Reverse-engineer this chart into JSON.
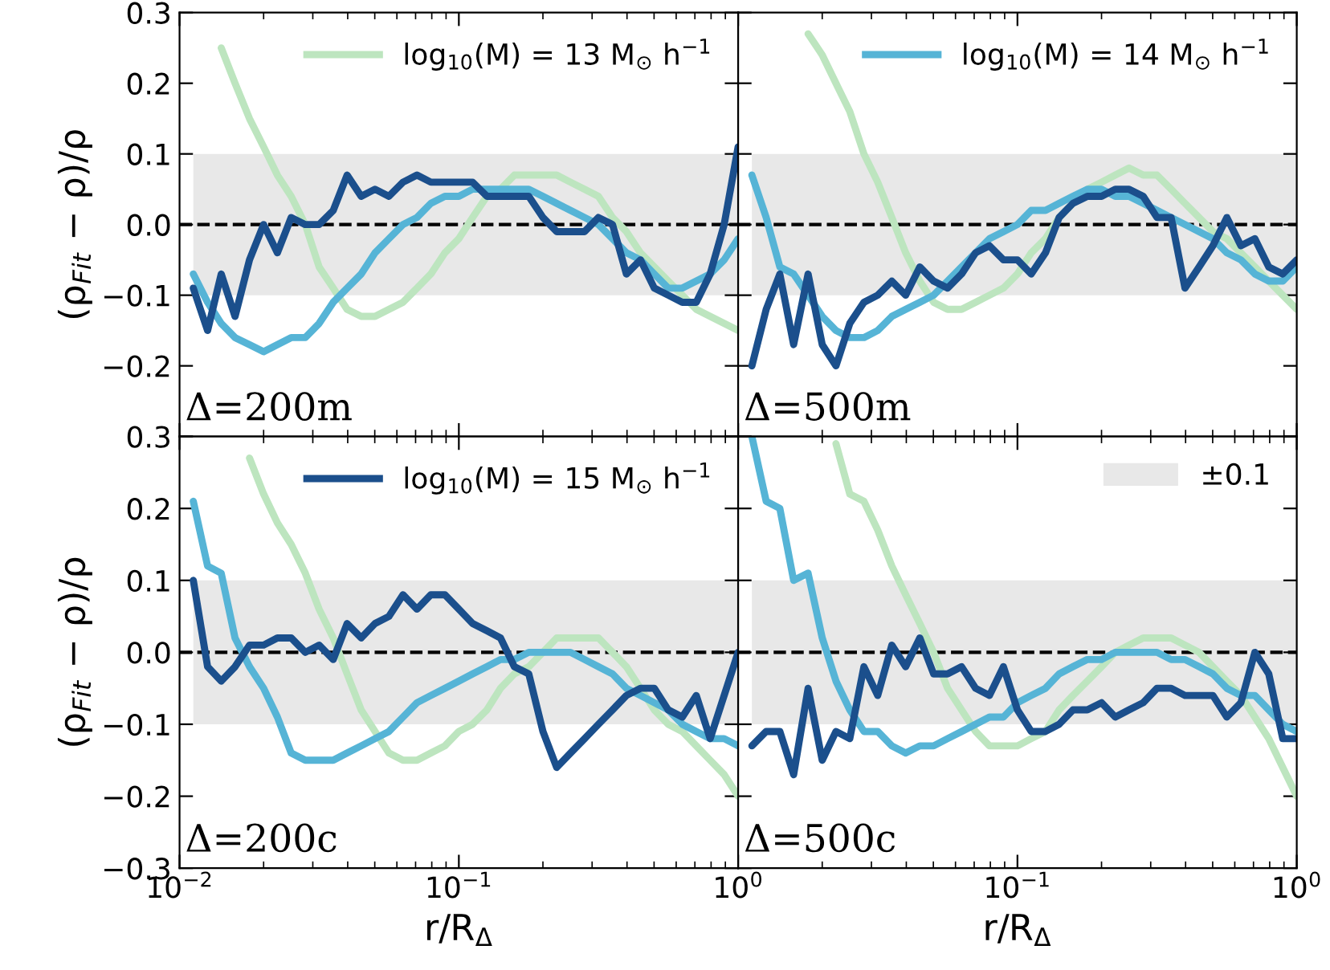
{
  "chart_data": [
    {
      "type": "line",
      "ylabel": "(ρ$_{Fit}$ − ρ)/ρ",
      "annotations": [
        "Δ=200m"
      ],
      "tick_labels": "y",
      "legend": "top right",
      "grid": false,
      "x": [
        0.0112,
        0.0126,
        0.0141,
        0.0158,
        0.0178,
        0.02,
        0.0224,
        0.0251,
        0.0282,
        0.0316,
        0.0355,
        0.0398,
        0.0447,
        0.0501,
        0.0562,
        0.0631,
        0.0708,
        0.0794,
        0.0891,
        0.1,
        0.112,
        0.126,
        0.141,
        0.158,
        0.178,
        0.2,
        0.224,
        0.251,
        0.282,
        0.316,
        0.355,
        0.398,
        0.447,
        0.501,
        0.562,
        0.631,
        0.708,
        0.794,
        0.891,
        1.0
      ],
      "log": "x",
      "xlim": [
        0.01,
        1
      ],
      "xticks": [
        {
          "value": 0.01,
          "label": null
        },
        {
          "value": 0.1,
          "label": null
        },
        {
          "value": 1,
          "label": null
        }
      ],
      "ylim": [
        -0.3,
        0.3
      ],
      "yticks": [
        {
          "value": -0.3,
          "label": null
        },
        {
          "value": -0.2,
          "label": "−0.2"
        },
        {
          "value": -0.1,
          "label": "−0.1"
        },
        {
          "value": 0,
          "label": "0.0"
        },
        0.1,
        0.2,
        0.3
      ],
      "ref_lines": [
        {
          "axis": "y",
          "value": 0,
          "color": "#000000",
          "line_style": "dashed"
        }
      ],
      "bands": [
        {
          "axis": "y",
          "from": -0.1,
          "to": 0.1,
          "color": "#e8e8e8"
        }
      ],
      "series": [
        {
          "name": "log$_{10}$(M) = 13 M$_{⊙}$ h$^{−1}$",
          "color": "#bde5bf",
          "values": [
            null,
            null,
            0.25,
            0.2,
            0.15,
            0.11,
            0.07,
            0.04,
            0.0,
            -0.06,
            -0.09,
            -0.12,
            -0.13,
            -0.13,
            -0.12,
            -0.11,
            -0.09,
            -0.07,
            -0.04,
            -0.02,
            0.01,
            0.04,
            0.05,
            0.07,
            0.07,
            0.07,
            0.07,
            0.06,
            0.05,
            0.04,
            0.01,
            -0.01,
            -0.04,
            -0.06,
            -0.08,
            -0.1,
            -0.12,
            -0.13,
            -0.14,
            -0.15
          ]
        },
        {
          "color": "#56b4d6",
          "values": [
            -0.07,
            -0.11,
            -0.14,
            -0.16,
            -0.17,
            -0.18,
            -0.17,
            -0.16,
            -0.16,
            -0.14,
            -0.11,
            -0.09,
            -0.07,
            -0.04,
            -0.02,
            0.0,
            0.01,
            0.03,
            0.04,
            0.04,
            0.05,
            0.05,
            0.05,
            0.05,
            0.05,
            0.04,
            0.03,
            0.02,
            0.01,
            0.0,
            -0.02,
            -0.04,
            -0.05,
            -0.07,
            -0.09,
            -0.09,
            -0.08,
            -0.07,
            -0.05,
            -0.02
          ]
        },
        {
          "color": "#1b4f8c",
          "values": [
            -0.09,
            -0.15,
            -0.07,
            -0.13,
            -0.05,
            0.0,
            -0.04,
            0.01,
            0.0,
            0.0,
            0.02,
            0.07,
            0.04,
            0.05,
            0.04,
            0.06,
            0.07,
            0.06,
            0.06,
            0.06,
            0.06,
            0.04,
            0.04,
            0.04,
            0.04,
            0.01,
            -0.01,
            -0.01,
            -0.01,
            0.01,
            0.0,
            -0.07,
            -0.05,
            -0.09,
            -0.1,
            -0.11,
            -0.11,
            -0.07,
            0.0,
            0.11
          ]
        }
      ]
    },
    {
      "type": "line",
      "annotations": [
        "Δ=500m"
      ],
      "tick_labels": false,
      "legend": "top right",
      "grid": false,
      "x": [
        0.0112,
        0.0126,
        0.0141,
        0.0158,
        0.0178,
        0.02,
        0.0224,
        0.0251,
        0.0282,
        0.0316,
        0.0355,
        0.0398,
        0.0447,
        0.0501,
        0.0562,
        0.0631,
        0.0708,
        0.0794,
        0.0891,
        0.1,
        0.112,
        0.126,
        0.141,
        0.158,
        0.178,
        0.2,
        0.224,
        0.251,
        0.282,
        0.316,
        0.355,
        0.398,
        0.447,
        0.501,
        0.562,
        0.631,
        0.708,
        0.794,
        0.891,
        1.0
      ],
      "log": "x",
      "xlim": [
        0.01,
        1
      ],
      "xticks": [
        {
          "value": 0.01,
          "label": null
        },
        {
          "value": 0.1,
          "label": null
        },
        {
          "value": 1,
          "label": null
        }
      ],
      "ylim": [
        -0.3,
        0.3
      ],
      "yticks": [
        {
          "value": -0.3,
          "label": null
        },
        {
          "value": -0.2,
          "label": null
        },
        {
          "value": -0.1,
          "label": null
        },
        {
          "value": 0,
          "label": null
        },
        {
          "value": 0.1,
          "label": null
        },
        {
          "value": 0.2,
          "label": null
        },
        {
          "value": 0.3,
          "label": null
        }
      ],
      "ref_lines": [
        {
          "axis": "y",
          "value": 0,
          "color": "#000000",
          "line_style": "dashed"
        }
      ],
      "bands": [
        {
          "axis": "y",
          "from": -0.1,
          "to": 0.1,
          "color": "#e8e8e8"
        }
      ],
      "series": [
        {
          "color": "#bde5bf",
          "values": [
            null,
            null,
            null,
            null,
            0.27,
            0.24,
            0.2,
            0.16,
            0.1,
            0.06,
            0.01,
            -0.04,
            -0.08,
            -0.11,
            -0.12,
            -0.12,
            -0.11,
            -0.1,
            -0.09,
            -0.07,
            -0.04,
            -0.02,
            0.01,
            0.03,
            0.05,
            0.06,
            0.07,
            0.08,
            0.07,
            0.07,
            0.05,
            0.03,
            0.01,
            -0.01,
            -0.02,
            -0.04,
            -0.06,
            -0.08,
            -0.1,
            -0.12
          ]
        },
        {
          "name": "log$_{10}$(M) = 14 M$_{⊙}$ h$^{−1}$",
          "color": "#56b4d6",
          "values": [
            0.07,
            0.01,
            -0.06,
            -0.07,
            -0.1,
            -0.13,
            -0.15,
            -0.16,
            -0.16,
            -0.15,
            -0.13,
            -0.12,
            -0.11,
            -0.1,
            -0.08,
            -0.06,
            -0.04,
            -0.02,
            -0.01,
            0.0,
            0.02,
            0.02,
            0.03,
            0.04,
            0.05,
            0.05,
            0.04,
            0.04,
            0.03,
            0.02,
            0.01,
            0.0,
            -0.01,
            -0.02,
            -0.04,
            -0.05,
            -0.07,
            -0.08,
            -0.08,
            -0.06
          ]
        },
        {
          "color": "#1b4f8c",
          "values": [
            -0.2,
            -0.12,
            -0.07,
            -0.17,
            -0.07,
            -0.17,
            -0.2,
            -0.14,
            -0.11,
            -0.1,
            -0.08,
            -0.1,
            -0.06,
            -0.08,
            -0.09,
            -0.07,
            -0.04,
            -0.03,
            -0.05,
            -0.05,
            -0.07,
            -0.04,
            0.01,
            0.03,
            0.04,
            0.04,
            0.05,
            0.05,
            0.04,
            0.01,
            0.01,
            -0.09,
            -0.06,
            -0.03,
            0.01,
            -0.03,
            -0.02,
            -0.06,
            -0.07,
            -0.05
          ]
        }
      ]
    },
    {
      "type": "line",
      "ylabel": "(ρ$_{Fit}$ − ρ)/ρ",
      "xlabel": "r/R$_{Δ}$",
      "annotations": [
        "Δ=200c"
      ],
      "legend": "top right",
      "grid": false,
      "x": [
        0.0112,
        0.0126,
        0.0141,
        0.0158,
        0.0178,
        0.02,
        0.0224,
        0.0251,
        0.0282,
        0.0316,
        0.0355,
        0.0398,
        0.0447,
        0.0501,
        0.0562,
        0.0631,
        0.0708,
        0.0794,
        0.0891,
        0.1,
        0.112,
        0.126,
        0.141,
        0.158,
        0.178,
        0.2,
        0.224,
        0.251,
        0.282,
        0.316,
        0.355,
        0.398,
        0.447,
        0.501,
        0.562,
        0.631,
        0.708,
        0.794,
        0.891,
        1.0
      ],
      "log": "x",
      "xlim": [
        0.01,
        1
      ],
      "xticks": [
        {
          "value": 0.01,
          "label": "10$^{−2}$"
        },
        {
          "value": 0.1,
          "label": "10$^{−1}$"
        },
        {
          "value": 1,
          "label": "10$^{0}$"
        }
      ],
      "ylim": [
        -0.3,
        0.3
      ],
      "yticks": [
        {
          "value": -0.3,
          "label": "−0.3"
        },
        {
          "value": -0.2,
          "label": "−0.2"
        },
        {
          "value": -0.1,
          "label": "−0.1"
        },
        {
          "value": 0,
          "label": "0.0"
        },
        0.1,
        0.2,
        0.3
      ],
      "ref_lines": [
        {
          "axis": "y",
          "value": 0,
          "color": "#000000",
          "line_style": "dashed"
        }
      ],
      "bands": [
        {
          "axis": "y",
          "from": -0.1,
          "to": 0.1,
          "color": "#e8e8e8"
        }
      ],
      "series": [
        {
          "color": "#bde5bf",
          "values": [
            null,
            null,
            null,
            null,
            0.27,
            0.22,
            0.18,
            0.15,
            0.11,
            0.06,
            0.02,
            -0.03,
            -0.08,
            -0.11,
            -0.14,
            -0.15,
            -0.15,
            -0.14,
            -0.13,
            -0.11,
            -0.1,
            -0.08,
            -0.05,
            -0.03,
            -0.02,
            0.0,
            0.02,
            0.02,
            0.02,
            0.02,
            0.0,
            -0.02,
            -0.05,
            -0.08,
            -0.1,
            -0.11,
            -0.13,
            -0.15,
            -0.17,
            -0.2
          ]
        },
        {
          "color": "#56b4d6",
          "values": [
            0.21,
            0.12,
            0.11,
            0.02,
            -0.02,
            -0.05,
            -0.09,
            -0.14,
            -0.15,
            -0.15,
            -0.15,
            -0.14,
            -0.13,
            -0.12,
            -0.11,
            -0.09,
            -0.07,
            -0.06,
            -0.05,
            -0.04,
            -0.03,
            -0.02,
            -0.01,
            -0.01,
            0.0,
            0.0,
            0.0,
            0.0,
            -0.01,
            -0.02,
            -0.03,
            -0.05,
            -0.06,
            -0.07,
            -0.08,
            -0.1,
            -0.11,
            -0.12,
            -0.12,
            -0.13
          ]
        },
        {
          "name": "log$_{10}$(M) = 15 M$_{⊙}$ h$^{−1}$",
          "color": "#1b4f8c",
          "values": [
            0.1,
            -0.02,
            -0.04,
            -0.02,
            0.01,
            0.01,
            0.02,
            0.02,
            0.0,
            0.01,
            -0.01,
            0.04,
            0.02,
            0.04,
            0.05,
            0.08,
            0.06,
            0.08,
            0.08,
            0.06,
            0.04,
            0.03,
            0.02,
            -0.02,
            -0.03,
            -0.11,
            -0.16,
            -0.14,
            -0.12,
            -0.1,
            -0.08,
            -0.06,
            -0.05,
            -0.05,
            -0.08,
            -0.09,
            -0.06,
            -0.12,
            -0.06,
            0.0
          ]
        }
      ]
    },
    {
      "type": "line",
      "xlabel": "r/R$_{Δ}$",
      "annotations": [
        "Δ=500c"
      ],
      "tick_labels": "x",
      "legend": "top right",
      "grid": false,
      "x": [
        0.0112,
        0.0126,
        0.0141,
        0.0158,
        0.0178,
        0.02,
        0.0224,
        0.0251,
        0.0282,
        0.0316,
        0.0355,
        0.0398,
        0.0447,
        0.0501,
        0.0562,
        0.0631,
        0.0708,
        0.0794,
        0.0891,
        0.1,
        0.112,
        0.126,
        0.141,
        0.158,
        0.178,
        0.2,
        0.224,
        0.251,
        0.282,
        0.316,
        0.355,
        0.398,
        0.447,
        0.501,
        0.562,
        0.631,
        0.708,
        0.794,
        0.891,
        1.0
      ],
      "log": "x",
      "xlim": [
        0.01,
        1
      ],
      "xticks": [
        {
          "value": 0.01,
          "label": null
        },
        {
          "value": 0.1,
          "label": "10$^{−1}$"
        },
        {
          "value": 1,
          "label": "10$^{0}$"
        }
      ],
      "ylim": [
        -0.3,
        0.3
      ],
      "yticks": [
        {
          "value": -0.3,
          "label": null
        },
        {
          "value": -0.2,
          "label": null
        },
        {
          "value": -0.1,
          "label": null
        },
        {
          "value": 0,
          "label": null
        },
        {
          "value": 0.1,
          "label": null
        },
        {
          "value": 0.2,
          "label": null
        },
        {
          "value": 0.3,
          "label": null
        }
      ],
      "ref_lines": [
        {
          "axis": "y",
          "value": 0,
          "color": "#000000",
          "line_style": "dashed"
        }
      ],
      "bands": [
        {
          "axis": "y",
          "from": -0.1,
          "to": 0.1,
          "color": "#e8e8e8",
          "label": "±0.1"
        }
      ],
      "series": [
        {
          "color": "#bde5bf",
          "values": [
            null,
            null,
            null,
            null,
            null,
            null,
            0.29,
            0.22,
            0.21,
            0.17,
            0.12,
            0.08,
            0.04,
            0.0,
            -0.05,
            -0.08,
            -0.11,
            -0.13,
            -0.13,
            -0.13,
            -0.12,
            -0.11,
            -0.08,
            -0.06,
            -0.04,
            -0.02,
            0.0,
            0.01,
            0.02,
            0.02,
            0.02,
            0.01,
            0.0,
            -0.02,
            -0.04,
            -0.06,
            -0.09,
            -0.12,
            -0.16,
            -0.2
          ]
        },
        {
          "color": "#56b4d6",
          "values": [
            0.3,
            0.21,
            0.2,
            0.1,
            0.11,
            0.02,
            -0.04,
            -0.08,
            -0.11,
            -0.11,
            -0.13,
            -0.14,
            -0.13,
            -0.13,
            -0.12,
            -0.11,
            -0.1,
            -0.09,
            -0.09,
            -0.07,
            -0.06,
            -0.05,
            -0.03,
            -0.02,
            -0.01,
            -0.01,
            0.0,
            0.0,
            0.0,
            0.0,
            -0.01,
            -0.01,
            -0.02,
            -0.03,
            -0.05,
            -0.06,
            -0.06,
            -0.08,
            -0.1,
            -0.11
          ]
        },
        {
          "color": "#1b4f8c",
          "values": [
            -0.13,
            -0.11,
            -0.11,
            -0.17,
            -0.05,
            -0.15,
            -0.11,
            -0.12,
            -0.02,
            -0.06,
            0.01,
            -0.02,
            0.02,
            -0.03,
            -0.03,
            -0.02,
            -0.05,
            -0.06,
            -0.02,
            -0.08,
            -0.11,
            -0.11,
            -0.1,
            -0.08,
            -0.08,
            -0.07,
            -0.09,
            -0.08,
            -0.07,
            -0.05,
            -0.05,
            -0.06,
            -0.06,
            -0.06,
            -0.09,
            -0.07,
            0.0,
            -0.03,
            -0.12,
            -0.12
          ]
        }
      ]
    }
  ]
}
